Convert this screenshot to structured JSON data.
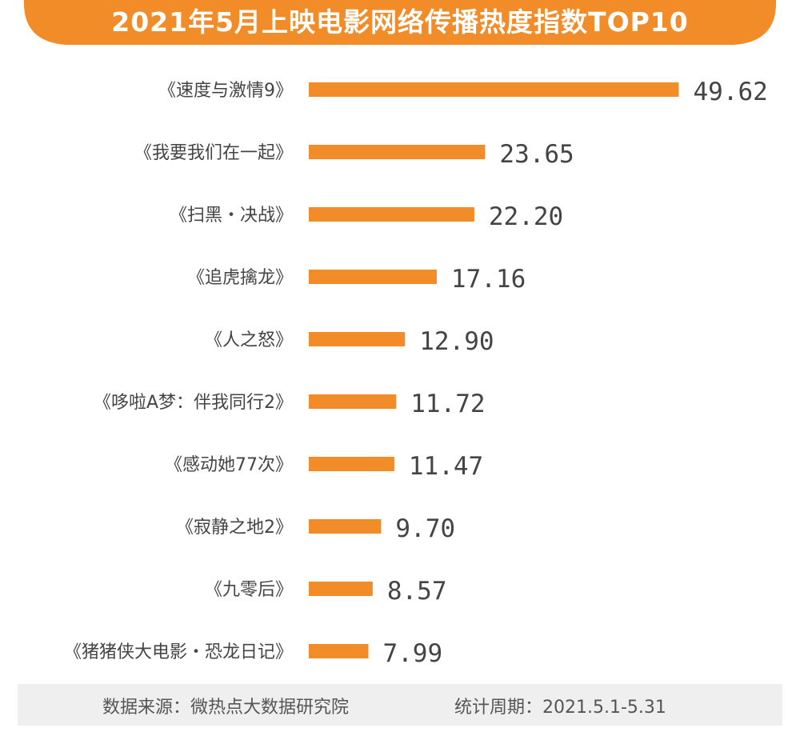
{
  "colors": {
    "accent": "#f28c28",
    "title_text": "#ffffff",
    "label_text": "#444444",
    "value_text": "#444444",
    "footer_bg": "#efefef"
  },
  "chart_data": {
    "type": "bar",
    "orientation": "horizontal",
    "title": "2021年5月上映电影网络传播热度指数TOP10",
    "categories": [
      "《速度与激情9》",
      "《我要我们在一起》",
      "《扫黑・决战》",
      "《追虎擒龙》",
      "《人之怒》",
      "《哆啦A梦：伴我同行2》",
      "《感动她77次》",
      "《寂静之地2》",
      "《九零后》",
      "《猪猪侠大电影・恐龙日记》"
    ],
    "values": [
      49.62,
      23.65,
      22.2,
      17.16,
      12.9,
      11.72,
      11.47,
      9.7,
      8.57,
      7.99
    ],
    "value_labels": [
      "49.62",
      "23.65",
      "22.20",
      "17.16",
      "12.90",
      "11.72",
      "11.47",
      "9.70",
      "8.57",
      "7.99"
    ],
    "xlabel": "",
    "ylabel": "",
    "grid": false,
    "legend": "none"
  },
  "footer": {
    "source": "数据来源：微热点大数据研究院",
    "period": "统计周期：2021.5.1-5.31"
  }
}
